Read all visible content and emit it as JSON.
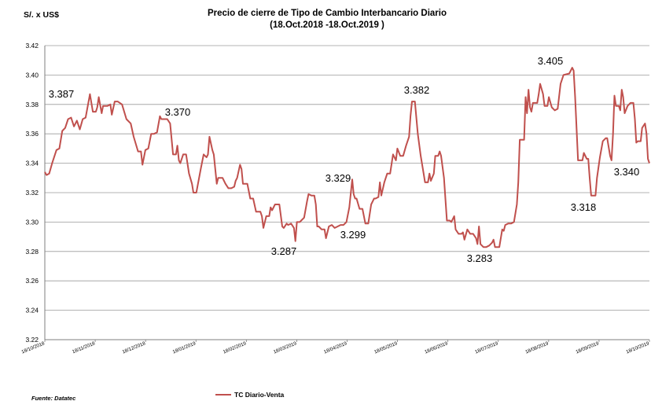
{
  "chart_data": {
    "type": "line",
    "title": "Precio de cierre de Tipo de Cambio Interbancario Diario",
    "subtitle": "(18.Oct.2018 -18.Oct.2019 )",
    "ylabel": "S/. x US$",
    "xlabel": "",
    "ylim": [
      3.22,
      3.42
    ],
    "yticks": [
      "3.22",
      "3.24",
      "3.26",
      "3.28",
      "3.30",
      "3.32",
      "3.34",
      "3.36",
      "3.38",
      "3.40",
      "3.42"
    ],
    "xticks": [
      "18/10/2018",
      "18/11/2018",
      "18/12/2018",
      "18/01/2019",
      "18/02/2019",
      "18/03/2019",
      "18/04/2019",
      "18/05/2019",
      "18/06/2019",
      "18/07/2019",
      "18/08/2019",
      "18/09/2019",
      "18/10/2019"
    ],
    "grid": true,
    "legend_position": "bottom-center",
    "line_color": "#c0504d",
    "series": [
      {
        "name": "TC Diario-Venta",
        "points": [
          [
            0,
            3.334
          ],
          [
            1.2,
            3.332
          ],
          [
            3,
            3.333
          ],
          [
            5,
            3.34
          ],
          [
            8,
            3.349
          ],
          [
            10,
            3.35
          ],
          [
            12,
            3.362
          ],
          [
            14,
            3.364
          ],
          [
            16,
            3.37
          ],
          [
            18,
            3.371
          ],
          [
            20,
            3.365
          ],
          [
            22,
            3.369
          ],
          [
            24,
            3.363
          ],
          [
            26,
            3.37
          ],
          [
            28,
            3.371
          ],
          [
            31,
            3.387
          ],
          [
            33,
            3.375
          ],
          [
            35,
            3.375
          ],
          [
            36,
            3.378
          ],
          [
            37,
            3.385
          ],
          [
            39,
            3.374
          ],
          [
            40,
            3.379
          ],
          [
            43,
            3.379
          ],
          [
            45,
            3.38
          ],
          [
            46,
            3.373
          ],
          [
            48,
            3.382
          ],
          [
            50,
            3.382
          ],
          [
            53,
            3.38
          ],
          [
            56,
            3.37
          ],
          [
            59,
            3.367
          ],
          [
            61,
            3.358
          ],
          [
            64,
            3.348
          ],
          [
            66,
            3.348
          ],
          [
            67,
            3.339
          ],
          [
            69,
            3.349
          ],
          [
            71,
            3.35
          ],
          [
            73,
            3.36
          ],
          [
            75,
            3.36
          ],
          [
            77,
            3.361
          ],
          [
            79,
            3.372
          ],
          [
            80,
            3.37
          ],
          [
            82,
            3.37
          ],
          [
            84,
            3.37
          ],
          [
            86,
            3.367
          ],
          [
            88,
            3.346
          ],
          [
            90,
            3.346
          ],
          [
            91,
            3.352
          ],
          [
            92,
            3.342
          ],
          [
            93,
            3.34
          ],
          [
            95,
            3.346
          ],
          [
            97,
            3.346
          ],
          [
            99,
            3.333
          ],
          [
            101,
            3.326
          ],
          [
            102,
            3.32
          ],
          [
            104,
            3.32
          ],
          [
            107,
            3.336
          ],
          [
            109,
            3.346
          ],
          [
            111,
            3.344
          ],
          [
            112,
            3.346
          ],
          [
            113,
            3.358
          ],
          [
            115,
            3.349
          ],
          [
            116,
            3.346
          ],
          [
            118,
            3.326
          ],
          [
            119,
            3.33
          ],
          [
            122,
            3.33
          ],
          [
            124,
            3.326
          ],
          [
            126,
            3.323
          ],
          [
            128,
            3.323
          ],
          [
            130,
            3.324
          ],
          [
            131,
            3.328
          ],
          [
            132,
            3.33
          ],
          [
            134,
            3.339
          ],
          [
            135,
            3.336
          ],
          [
            136,
            3.326
          ],
          [
            139,
            3.326
          ],
          [
            141,
            3.316
          ],
          [
            143,
            3.316
          ],
          [
            145,
            3.307
          ],
          [
            148,
            3.307
          ],
          [
            149,
            3.304
          ],
          [
            150,
            3.296
          ],
          [
            152,
            3.304
          ],
          [
            154,
            3.304
          ],
          [
            155,
            3.31
          ],
          [
            156,
            3.308
          ],
          [
            158,
            3.312
          ],
          [
            161,
            3.312
          ],
          [
            163,
            3.297
          ],
          [
            164,
            3.296
          ],
          [
            166,
            3.299
          ],
          [
            167,
            3.298
          ],
          [
            169,
            3.299
          ],
          [
            171,
            3.296
          ],
          [
            172,
            3.287
          ],
          [
            173,
            3.3
          ],
          [
            175,
            3.3
          ],
          [
            176,
            3.301
          ],
          [
            178,
            3.303
          ],
          [
            180,
            3.314
          ],
          [
            181,
            3.319
          ],
          [
            183,
            3.318
          ],
          [
            185,
            3.318
          ],
          [
            186,
            3.312
          ],
          [
            187,
            3.297
          ],
          [
            188,
            3.297
          ],
          [
            190,
            3.295
          ],
          [
            192,
            3.295
          ],
          [
            193,
            3.289
          ],
          [
            195,
            3.297
          ],
          [
            197,
            3.298
          ],
          [
            199,
            3.296
          ],
          [
            201,
            3.297
          ],
          [
            203,
            3.298
          ],
          [
            205,
            3.298
          ],
          [
            207,
            3.3
          ],
          [
            209,
            3.31
          ],
          [
            211,
            3.329
          ],
          [
            212,
            3.319
          ],
          [
            213,
            3.316
          ],
          [
            214,
            3.316
          ],
          [
            216,
            3.309
          ],
          [
            218,
            3.309
          ],
          [
            220,
            3.299
          ],
          [
            222,
            3.299
          ],
          [
            224,
            3.312
          ],
          [
            226,
            3.316
          ],
          [
            227,
            3.316
          ],
          [
            229,
            3.317
          ],
          [
            230,
            3.327
          ],
          [
            231,
            3.318
          ],
          [
            233,
            3.327
          ],
          [
            235,
            3.333
          ],
          [
            237,
            3.333
          ],
          [
            239,
            3.346
          ],
          [
            241,
            3.342
          ],
          [
            242,
            3.35
          ],
          [
            244,
            3.345
          ],
          [
            246,
            3.345
          ],
          [
            248,
            3.352
          ],
          [
            250,
            3.358
          ],
          [
            251,
            3.372
          ],
          [
            252,
            3.382
          ],
          [
            254,
            3.382
          ],
          [
            256,
            3.36
          ],
          [
            258,
            3.345
          ],
          [
            260,
            3.333
          ],
          [
            261,
            3.327
          ],
          [
            263,
            3.327
          ],
          [
            264,
            3.333
          ],
          [
            265,
            3.328
          ],
          [
            267,
            3.333
          ],
          [
            268,
            3.345
          ],
          [
            270,
            3.345
          ],
          [
            271,
            3.348
          ],
          [
            272,
            3.345
          ],
          [
            274,
            3.33
          ],
          [
            276,
            3.301
          ],
          [
            278,
            3.301
          ],
          [
            279,
            3.3
          ],
          [
            281,
            3.304
          ],
          [
            282,
            3.295
          ],
          [
            284,
            3.292
          ],
          [
            286,
            3.292
          ],
          [
            287,
            3.293
          ],
          [
            288,
            3.288
          ],
          [
            290,
            3.295
          ],
          [
            292,
            3.292
          ],
          [
            294,
            3.292
          ],
          [
            296,
            3.289
          ],
          [
            297,
            3.285
          ],
          [
            298,
            3.297
          ],
          [
            299,
            3.285
          ],
          [
            301,
            3.283
          ],
          [
            303,
            3.283
          ],
          [
            305,
            3.284
          ],
          [
            307,
            3.286
          ],
          [
            308,
            3.288
          ],
          [
            309,
            3.283
          ],
          [
            312,
            3.283
          ],
          [
            314,
            3.295
          ],
          [
            315,
            3.294
          ],
          [
            316,
            3.298
          ],
          [
            318,
            3.299
          ],
          [
            320,
            3.299
          ],
          [
            322,
            3.3
          ],
          [
            324,
            3.312
          ],
          [
            325,
            3.327
          ],
          [
            326,
            3.356
          ],
          [
            329,
            3.356
          ],
          [
            330,
            3.385
          ],
          [
            331,
            3.374
          ],
          [
            332,
            3.39
          ],
          [
            333,
            3.378
          ],
          [
            334,
            3.375
          ],
          [
            335,
            3.381
          ],
          [
            338,
            3.381
          ],
          [
            339,
            3.387
          ],
          [
            340,
            3.394
          ],
          [
            342,
            3.387
          ],
          [
            343,
            3.379
          ],
          [
            345,
            3.379
          ],
          [
            346,
            3.385
          ],
          [
            348,
            3.378
          ],
          [
            350,
            3.376
          ],
          [
            352,
            3.377
          ],
          [
            354,
            3.394
          ],
          [
            356,
            3.4
          ],
          [
            360,
            3.401
          ],
          [
            362,
            3.405
          ],
          [
            363,
            3.403
          ],
          [
            364,
            3.385
          ],
          [
            366,
            3.342
          ],
          [
            369,
            3.342
          ],
          [
            370,
            3.347
          ],
          [
            372,
            3.343
          ],
          [
            373,
            3.343
          ],
          [
            374,
            3.33
          ],
          [
            375,
            3.318
          ],
          [
            378,
            3.318
          ],
          [
            379,
            3.33
          ],
          [
            381,
            3.344
          ],
          [
            383,
            3.355
          ],
          [
            385,
            3.357
          ],
          [
            386,
            3.357
          ],
          [
            388,
            3.345
          ],
          [
            389,
            3.342
          ],
          [
            390,
            3.36
          ],
          [
            391,
            3.386
          ],
          [
            392,
            3.379
          ],
          [
            394,
            3.379
          ],
          [
            395,
            3.376
          ],
          [
            396,
            3.39
          ],
          [
            397,
            3.385
          ],
          [
            398,
            3.374
          ],
          [
            400,
            3.379
          ],
          [
            402,
            3.381
          ],
          [
            404,
            3.381
          ],
          [
            405,
            3.37
          ],
          [
            406,
            3.354
          ],
          [
            407,
            3.355
          ],
          [
            409,
            3.355
          ],
          [
            410,
            3.364
          ],
          [
            412,
            3.367
          ],
          [
            413,
            3.36
          ],
          [
            414,
            3.343
          ],
          [
            415,
            3.34
          ]
        ]
      }
    ],
    "annotations": [
      {
        "text": "3.387"
      },
      {
        "text": "3.370"
      },
      {
        "text": "3.287"
      },
      {
        "text": "3.329"
      },
      {
        "text": "3.299"
      },
      {
        "text": "3.382"
      },
      {
        "text": "3.283"
      },
      {
        "text": "3.405"
      },
      {
        "text": "3.318"
      },
      {
        "text": "3.340"
      }
    ],
    "source": "Fuente: Datatec"
  }
}
